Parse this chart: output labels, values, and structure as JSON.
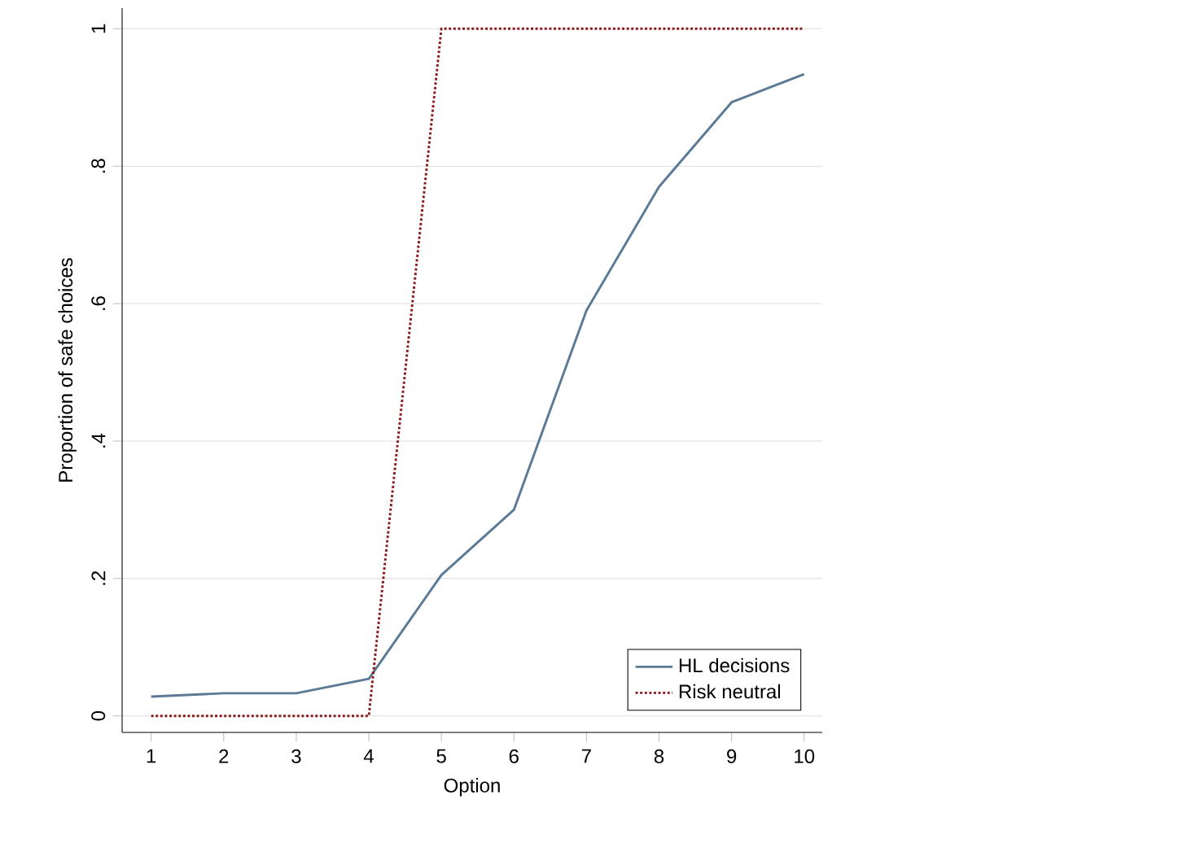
{
  "chart_data": {
    "type": "line",
    "xlabel": "Option",
    "ylabel": "Proportion of safe choices",
    "x": [
      1,
      2,
      3,
      4,
      5,
      6,
      7,
      8,
      9,
      10
    ],
    "series": [
      {
        "name": "HL decisions",
        "color": "#5b7a96",
        "line_style": "solid",
        "values": [
          0.028,
          0.033,
          0.033,
          0.054,
          0.205,
          0.3,
          0.59,
          0.77,
          0.893,
          0.934
        ]
      },
      {
        "name": "Risk neutral",
        "color": "#8b1a1a",
        "line_style": "dotted",
        "values": [
          0,
          0,
          0,
          0,
          1,
          1,
          1,
          1,
          1,
          1
        ]
      }
    ],
    "xlim": [
      0.6,
      10.25
    ],
    "ylim": [
      -0.024,
      1.03
    ],
    "xticks": [
      1,
      2,
      3,
      4,
      5,
      6,
      7,
      8,
      9,
      10
    ],
    "yticks": [
      0,
      {
        "value": 0.2,
        "label": ".2"
      },
      {
        "value": 0.4,
        "label": ".4"
      },
      {
        "value": 0.6,
        "label": ".6"
      },
      {
        "value": 0.8,
        "label": ".8"
      },
      1
    ],
    "grid": "y",
    "legend": "bottom right",
    "marker": "none"
  }
}
